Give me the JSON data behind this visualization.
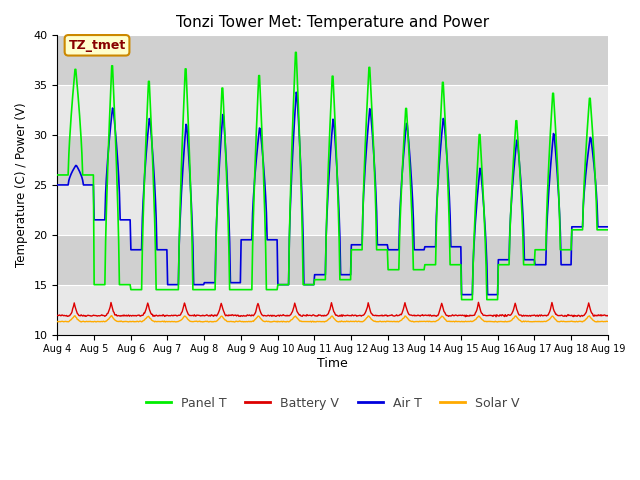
{
  "title": "Tonzi Tower Met: Temperature and Power",
  "xlabel": "Time",
  "ylabel": "Temperature (C) / Power (V)",
  "ylim": [
    10,
    40
  ],
  "yticks": [
    10,
    15,
    20,
    25,
    30,
    35,
    40
  ],
  "bg_color_light": "#e8e8e8",
  "bg_color_dark": "#d0d0d0",
  "fig_bg": "#ffffff",
  "annotation_text": "TZ_tmet",
  "annotation_bg": "#ffffcc",
  "annotation_border": "#cc8800",
  "annotation_text_color": "#880000",
  "legend_entries": [
    "Panel T",
    "Battery V",
    "Air T",
    "Solar V"
  ],
  "line_colors": {
    "panel_t": "#00ee00",
    "battery_v": "#dd0000",
    "air_t": "#0000dd",
    "solar_v": "#ffaa00"
  },
  "n_days": 15,
  "start_day": 4,
  "panel_t_day_peaks": [
    37.0,
    37.8,
    36.2,
    37.5,
    35.5,
    36.8,
    39.2,
    36.7,
    37.5,
    33.3,
    36.0,
    30.7,
    32.0,
    34.8,
    34.2
  ],
  "panel_t_day_mins": [
    26.0,
    15.0,
    14.5,
    14.5,
    14.5,
    14.5,
    15.0,
    15.5,
    18.5,
    16.5,
    17.0,
    13.5,
    17.0,
    18.5,
    20.5
  ],
  "air_t_day_peaks": [
    27.0,
    33.0,
    32.0,
    31.5,
    32.5,
    31.0,
    34.8,
    32.0,
    33.0,
    31.5,
    32.0,
    27.0,
    29.8,
    30.5,
    30.0
  ],
  "air_t_day_mins": [
    25.0,
    21.5,
    18.5,
    15.0,
    15.2,
    19.5,
    15.0,
    16.0,
    19.0,
    18.5,
    18.8,
    14.0,
    17.5,
    17.0,
    20.8
  ],
  "battery_v_base": 11.9,
  "battery_v_spike": 13.2,
  "solar_v_base": 11.3,
  "solar_v_spike": 11.9,
  "samples_per_day": 48
}
